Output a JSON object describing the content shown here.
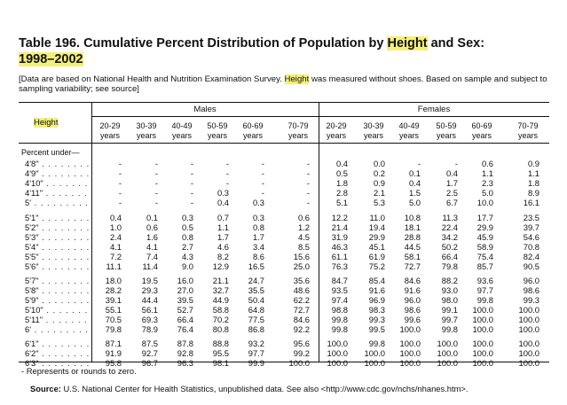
{
  "title": {
    "prefix": "Table 196.",
    "main_a": "Cumulative Percent Distribution of Population by",
    "hl1": "Height",
    "main_b": "and Sex:",
    "hl2": "1998–2002"
  },
  "note": {
    "a": "[Data are based on National Health and Nutrition Examination Survey.",
    "hl": "Height",
    "b": "was measured without shoes. Based on sample and subject to sampling variability; see source]"
  },
  "header": {
    "height_label": "Height",
    "males_label": "Males",
    "females_label": "Females",
    "age_groups": [
      "20-29",
      "30-39",
      "40-49",
      "50-59",
      "60-69",
      "70-79"
    ],
    "years_word": "years",
    "percent_under": "Percent under—"
  },
  "rows": [
    {
      "h": "4'8\"",
      "m": [
        "-",
        "-",
        "-",
        "-",
        "-",
        "-"
      ],
      "f": [
        "0.4",
        "0.0",
        "-",
        "-",
        "0.6",
        "0.9"
      ]
    },
    {
      "h": "4'9\"",
      "m": [
        "-",
        "-",
        "-",
        "-",
        "-",
        "-"
      ],
      "f": [
        "0.5",
        "0.2",
        "0.1",
        "0.4",
        "1.1",
        "1.1"
      ]
    },
    {
      "h": "4'10\"",
      "m": [
        "-",
        "-",
        "-",
        "-",
        "-",
        "-"
      ],
      "f": [
        "1.8",
        "0.9",
        "0.4",
        "1.7",
        "2.3",
        "1.8"
      ]
    },
    {
      "h": "4'11\"",
      "m": [
        "-",
        "-",
        "-",
        "0.3",
        "-",
        "-"
      ],
      "f": [
        "2.8",
        "2.1",
        "1.5",
        "2.5",
        "5.0",
        "8.9"
      ]
    },
    {
      "h": "5'",
      "m": [
        "-",
        "-",
        "-",
        "0.4",
        "0.3",
        "-"
      ],
      "f": [
        "5.1",
        "5.3",
        "5.0",
        "6.7",
        "10.0",
        "16.1"
      ]
    },
    {
      "h": "5'1\"",
      "m": [
        "0.4",
        "0.1",
        "0.3",
        "0.7",
        "0.3",
        "0.6"
      ],
      "f": [
        "12.2",
        "11.0",
        "10.8",
        "11.3",
        "17.7",
        "23.5"
      ]
    },
    {
      "h": "5'2\"",
      "m": [
        "1.0",
        "0.6",
        "0.5",
        "1.1",
        "0.8",
        "1.2"
      ],
      "f": [
        "21.4",
        "19.4",
        "18.1",
        "22.4",
        "29.9",
        "39.7"
      ]
    },
    {
      "h": "5'3\"",
      "m": [
        "2.4",
        "1.6",
        "0.8",
        "1.7",
        "1.7",
        "4.5"
      ],
      "f": [
        "31.9",
        "29.9",
        "28.8",
        "34.2",
        "45.9",
        "54.6"
      ]
    },
    {
      "h": "5'4\"",
      "m": [
        "4.1",
        "4.1",
        "2.7",
        "4.6",
        "3.4",
        "8.5"
      ],
      "f": [
        "46.3",
        "45.1",
        "44.5",
        "50.2",
        "58.9",
        "70.8"
      ]
    },
    {
      "h": "5'5\"",
      "m": [
        "7.2",
        "7.4",
        "4.3",
        "8.2",
        "8.6",
        "15.6"
      ],
      "f": [
        "61.1",
        "61.9",
        "58.1",
        "66.4",
        "75.4",
        "82.4"
      ]
    },
    {
      "h": "5'6\"",
      "m": [
        "11.1",
        "11.4",
        "9.0",
        "12.9",
        "16.5",
        "25.0"
      ],
      "f": [
        "76.3",
        "75.2",
        "72.7",
        "79.8",
        "85.7",
        "90.5"
      ]
    },
    {
      "h": "5'7\"",
      "m": [
        "18.0",
        "19.5",
        "16.0",
        "21.1",
        "24.7",
        "35.6"
      ],
      "f": [
        "84.7",
        "85.4",
        "84.6",
        "88.2",
        "93.6",
        "96.0"
      ]
    },
    {
      "h": "5'8\"",
      "m": [
        "28.2",
        "29.3",
        "27.0",
        "32.7",
        "35.5",
        "48.6"
      ],
      "f": [
        "93.5",
        "91.6",
        "91.6",
        "93.0",
        "97.7",
        "98.6"
      ]
    },
    {
      "h": "5'9\"",
      "m": [
        "39.1",
        "44.4",
        "39.5",
        "44.9",
        "50.4",
        "62.2"
      ],
      "f": [
        "97.4",
        "96.9",
        "96.0",
        "98.0",
        "99.8",
        "99.3"
      ]
    },
    {
      "h": "5'10\"",
      "m": [
        "55.1",
        "56.1",
        "52.7",
        "58.8",
        "64.8",
        "72.7"
      ],
      "f": [
        "98.8",
        "98.3",
        "98.6",
        "99.1",
        "100.0",
        "100.0"
      ]
    },
    {
      "h": "5'11\"",
      "m": [
        "70.5",
        "69.3",
        "66.4",
        "70.2",
        "77.5",
        "84.6"
      ],
      "f": [
        "99.8",
        "99.3",
        "99.6",
        "99.7",
        "100.0",
        "100.0"
      ]
    },
    {
      "h": "6'",
      "m": [
        "79.8",
        "78.9",
        "76.4",
        "80.8",
        "86.8",
        "92.2"
      ],
      "f": [
        "99.8",
        "99.5",
        "100.0",
        "99.8",
        "100.0",
        "100.0"
      ]
    },
    {
      "h": "6'1\"",
      "m": [
        "87.1",
        "87.5",
        "87.8",
        "88.8",
        "93.2",
        "95.6"
      ],
      "f": [
        "100.0",
        "99.8",
        "100.0",
        "100.0",
        "100.0",
        "100.0"
      ]
    },
    {
      "h": "6'2\"",
      "m": [
        "91.9",
        "92.7",
        "92.8",
        "95.5",
        "97.7",
        "99.2"
      ],
      "f": [
        "100.0",
        "100.0",
        "100.0",
        "100.0",
        "100.0",
        "100.0"
      ]
    },
    {
      "h": "6'3\"",
      "m": [
        "95.8",
        "96.7",
        "96.3",
        "98.1",
        "99.9",
        "100.0"
      ],
      "f": [
        "100.0",
        "100.0",
        "100.0",
        "100.0",
        "100.0",
        "100.0"
      ]
    }
  ],
  "footnote": "- Represents or rounds to zero.",
  "source": {
    "label": "Source:",
    "text": "U.S. National Center for Health Statistics, unpublished data. See also <http://www.cdc.gov/nchs/nhanes.htm>."
  },
  "colors": {
    "highlight": "#f3ef7a"
  }
}
